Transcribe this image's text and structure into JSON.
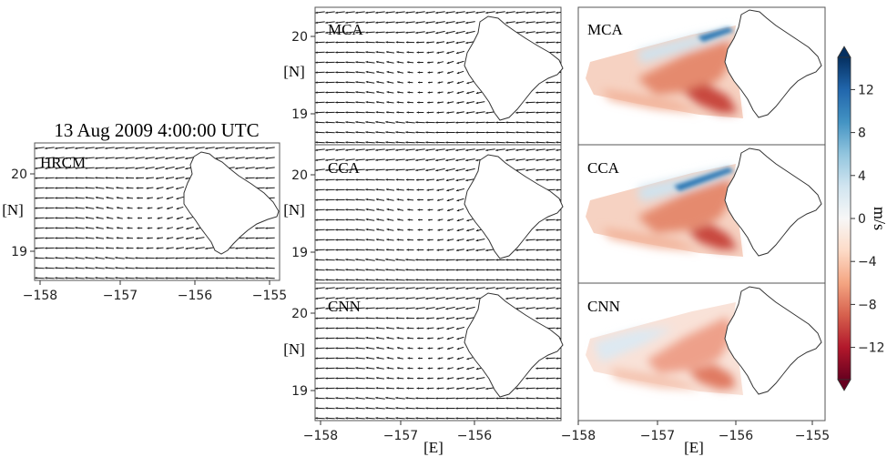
{
  "figure": {
    "title": "13 Aug 2009 4:00:00 UTC",
    "colors": {
      "coast": "#333333",
      "arrow": "#1a1a1a",
      "frame": "#555555"
    }
  },
  "chart_data": [
    {
      "type": "quiver",
      "panel_label": "HRCM",
      "xticks": [
        "−158",
        "−157",
        "−156",
        "−155"
      ],
      "yticks": [
        "20",
        "19"
      ],
      "xlim": [
        -158,
        -155
      ],
      "ylim": [
        18.75,
        20.35
      ],
      "xlabel": "",
      "ylabel": "[N]"
    },
    {
      "type": "quiver",
      "panel_label": "MCA",
      "xticks": [],
      "yticks": [
        "20",
        "19"
      ],
      "xlim": [
        -158,
        -155.9
      ],
      "ylim": [
        18.7,
        20.3
      ],
      "xlabel": "",
      "ylabel": "[N]"
    },
    {
      "type": "quiver",
      "panel_label": "CCA",
      "xticks": [],
      "yticks": [
        "20",
        "19"
      ],
      "xlim": [
        -158,
        -155.9
      ],
      "ylim": [
        18.7,
        20.3
      ],
      "xlabel": "",
      "ylabel": "[N]"
    },
    {
      "type": "quiver",
      "panel_label": "CNN",
      "xticks": [
        "−158",
        "−157",
        "−156"
      ],
      "yticks": [
        "20",
        "19"
      ],
      "xlim": [
        -158,
        -155.9
      ],
      "ylim": [
        18.7,
        20.3
      ],
      "xlabel": "[E]",
      "ylabel": "[N]"
    },
    {
      "type": "heatmap",
      "panel_label": "MCA",
      "xticks": [],
      "xlim": [
        -158,
        -154.9
      ],
      "ylim": [
        18.7,
        20.3
      ]
    },
    {
      "type": "heatmap",
      "panel_label": "CCA",
      "xticks": [],
      "xlim": [
        -158,
        -154.9
      ],
      "ylim": [
        18.7,
        20.3
      ]
    },
    {
      "type": "heatmap",
      "panel_label": "CNN",
      "xticks": [
        "−158",
        "−157",
        "−156",
        "−155"
      ],
      "xlim": [
        -158,
        -154.9
      ],
      "ylim": [
        18.7,
        20.3
      ],
      "xlabel": "[E]"
    }
  ],
  "colorbar": {
    "label": "m/s",
    "ticks": [
      "12",
      "8",
      "4",
      "0",
      "−4",
      "−8",
      "−12"
    ],
    "tick_values": [
      12,
      8,
      4,
      0,
      -4,
      -8,
      -12
    ],
    "range": [
      -15,
      15
    ],
    "colors": [
      "#67001f",
      "#b2182b",
      "#d6604d",
      "#f4a582",
      "#fddbc7",
      "#f7f7f7",
      "#d1e5f0",
      "#92c5de",
      "#4393c3",
      "#2166ac",
      "#053061"
    ]
  }
}
